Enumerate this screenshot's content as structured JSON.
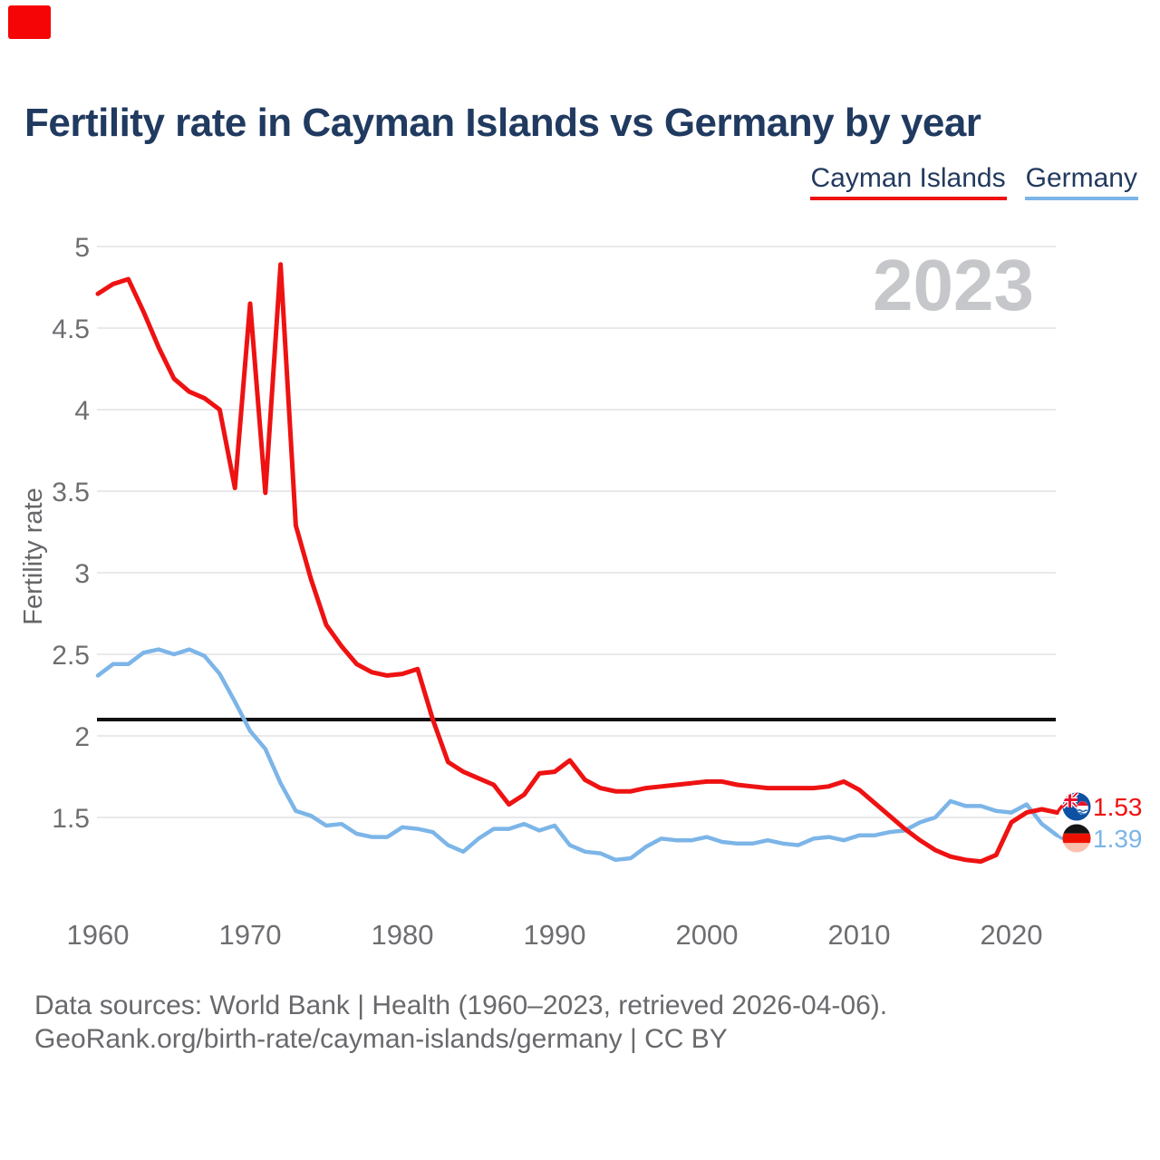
{
  "title": "Fertility rate in Cayman Islands vs Germany by year",
  "legend": [
    {
      "label": "Cayman Islands",
      "color": "#ee1212"
    },
    {
      "label": "Germany",
      "color": "#7cb5e8"
    }
  ],
  "watermark": "2023",
  "y_axis": {
    "label": "Fertility rate",
    "ticks": [
      5,
      4.5,
      4,
      3.5,
      3,
      2.5,
      2,
      1.5
    ]
  },
  "x_axis": {
    "ticks": [
      1960,
      1970,
      1980,
      1990,
      2000,
      2010,
      2020
    ]
  },
  "reference_line": {
    "value": 2.1
  },
  "end_labels": [
    {
      "series": "Cayman Islands",
      "value": "1.53",
      "flag": "cayman-islands-flag"
    },
    {
      "series": "Germany",
      "value": "1.39",
      "flag": "germany-flag"
    }
  ],
  "footer": {
    "line1": "Data sources: World Bank | Health (1960–2023, retrieved 2026-04-06).",
    "line2": "GeoRank.org/birth-rate/cayman-islands/germany | CC BY"
  },
  "colors": {
    "cayman": "#ee1212",
    "germany": "#7cb5e8",
    "reference_line": "#111111",
    "grid": "#e9e9ec",
    "title_text": "#203a60",
    "axis_text": "#6e6e72",
    "footer_text": "#69696d",
    "watermark": "#c6c7ca",
    "corner_marker": "#f50505"
  },
  "chart_data": {
    "type": "line",
    "title": "Fertility rate in Cayman Islands vs Germany by year",
    "xlabel": "",
    "ylabel": "Fertility rate",
    "xlim": [
      1960,
      2023
    ],
    "ylim": [
      1.05,
      5.2
    ],
    "yticks": [
      1.5,
      2,
      2.5,
      3,
      3.5,
      4,
      4.5,
      5
    ],
    "xticks": [
      1960,
      1970,
      1980,
      1990,
      2000,
      2010,
      2020
    ],
    "grid": "horizontal",
    "legend_position": "top-right",
    "reference_line": 2.1,
    "watermark": "2023",
    "x": [
      1960,
      1961,
      1962,
      1963,
      1964,
      1965,
      1966,
      1967,
      1968,
      1969,
      1970,
      1971,
      1972,
      1973,
      1974,
      1975,
      1976,
      1977,
      1978,
      1979,
      1980,
      1981,
      1982,
      1983,
      1984,
      1985,
      1986,
      1987,
      1988,
      1989,
      1990,
      1991,
      1992,
      1993,
      1994,
      1995,
      1996,
      1997,
      1998,
      1999,
      2000,
      2001,
      2002,
      2003,
      2004,
      2005,
      2006,
      2007,
      2008,
      2009,
      2010,
      2011,
      2012,
      2013,
      2014,
      2015,
      2016,
      2017,
      2018,
      2019,
      2020,
      2021,
      2022,
      2023
    ],
    "series": [
      {
        "name": "Cayman Islands",
        "color": "#ee1212",
        "end_value": 1.53,
        "values": [
          4.71,
          4.77,
          4.8,
          4.6,
          4.38,
          4.19,
          4.11,
          4.07,
          4.0,
          3.52,
          4.65,
          3.49,
          4.89,
          3.29,
          2.96,
          2.68,
          2.55,
          2.44,
          2.39,
          2.37,
          2.38,
          2.41,
          2.1,
          1.84,
          1.78,
          1.74,
          1.7,
          1.58,
          1.64,
          1.77,
          1.78,
          1.85,
          1.73,
          1.68,
          1.66,
          1.66,
          1.68,
          1.69,
          1.7,
          1.71,
          1.72,
          1.72,
          1.7,
          1.69,
          1.68,
          1.68,
          1.68,
          1.68,
          1.69,
          1.72,
          1.67,
          1.59,
          1.51,
          1.43,
          1.36,
          1.3,
          1.26,
          1.24,
          1.23,
          1.27,
          1.47,
          1.53,
          1.55,
          1.53
        ]
      },
      {
        "name": "Germany",
        "color": "#7cb5e8",
        "end_value": 1.39,
        "values": [
          2.37,
          2.44,
          2.44,
          2.51,
          2.53,
          2.5,
          2.53,
          2.49,
          2.38,
          2.21,
          2.03,
          1.92,
          1.71,
          1.54,
          1.51,
          1.45,
          1.46,
          1.4,
          1.38,
          1.38,
          1.44,
          1.43,
          1.41,
          1.33,
          1.29,
          1.37,
          1.43,
          1.43,
          1.46,
          1.42,
          1.45,
          1.33,
          1.29,
          1.28,
          1.24,
          1.25,
          1.32,
          1.37,
          1.36,
          1.36,
          1.38,
          1.35,
          1.34,
          1.34,
          1.36,
          1.34,
          1.33,
          1.37,
          1.38,
          1.36,
          1.39,
          1.39,
          1.41,
          1.42,
          1.47,
          1.5,
          1.6,
          1.57,
          1.57,
          1.54,
          1.53,
          1.58,
          1.46,
          1.39
        ]
      }
    ]
  }
}
